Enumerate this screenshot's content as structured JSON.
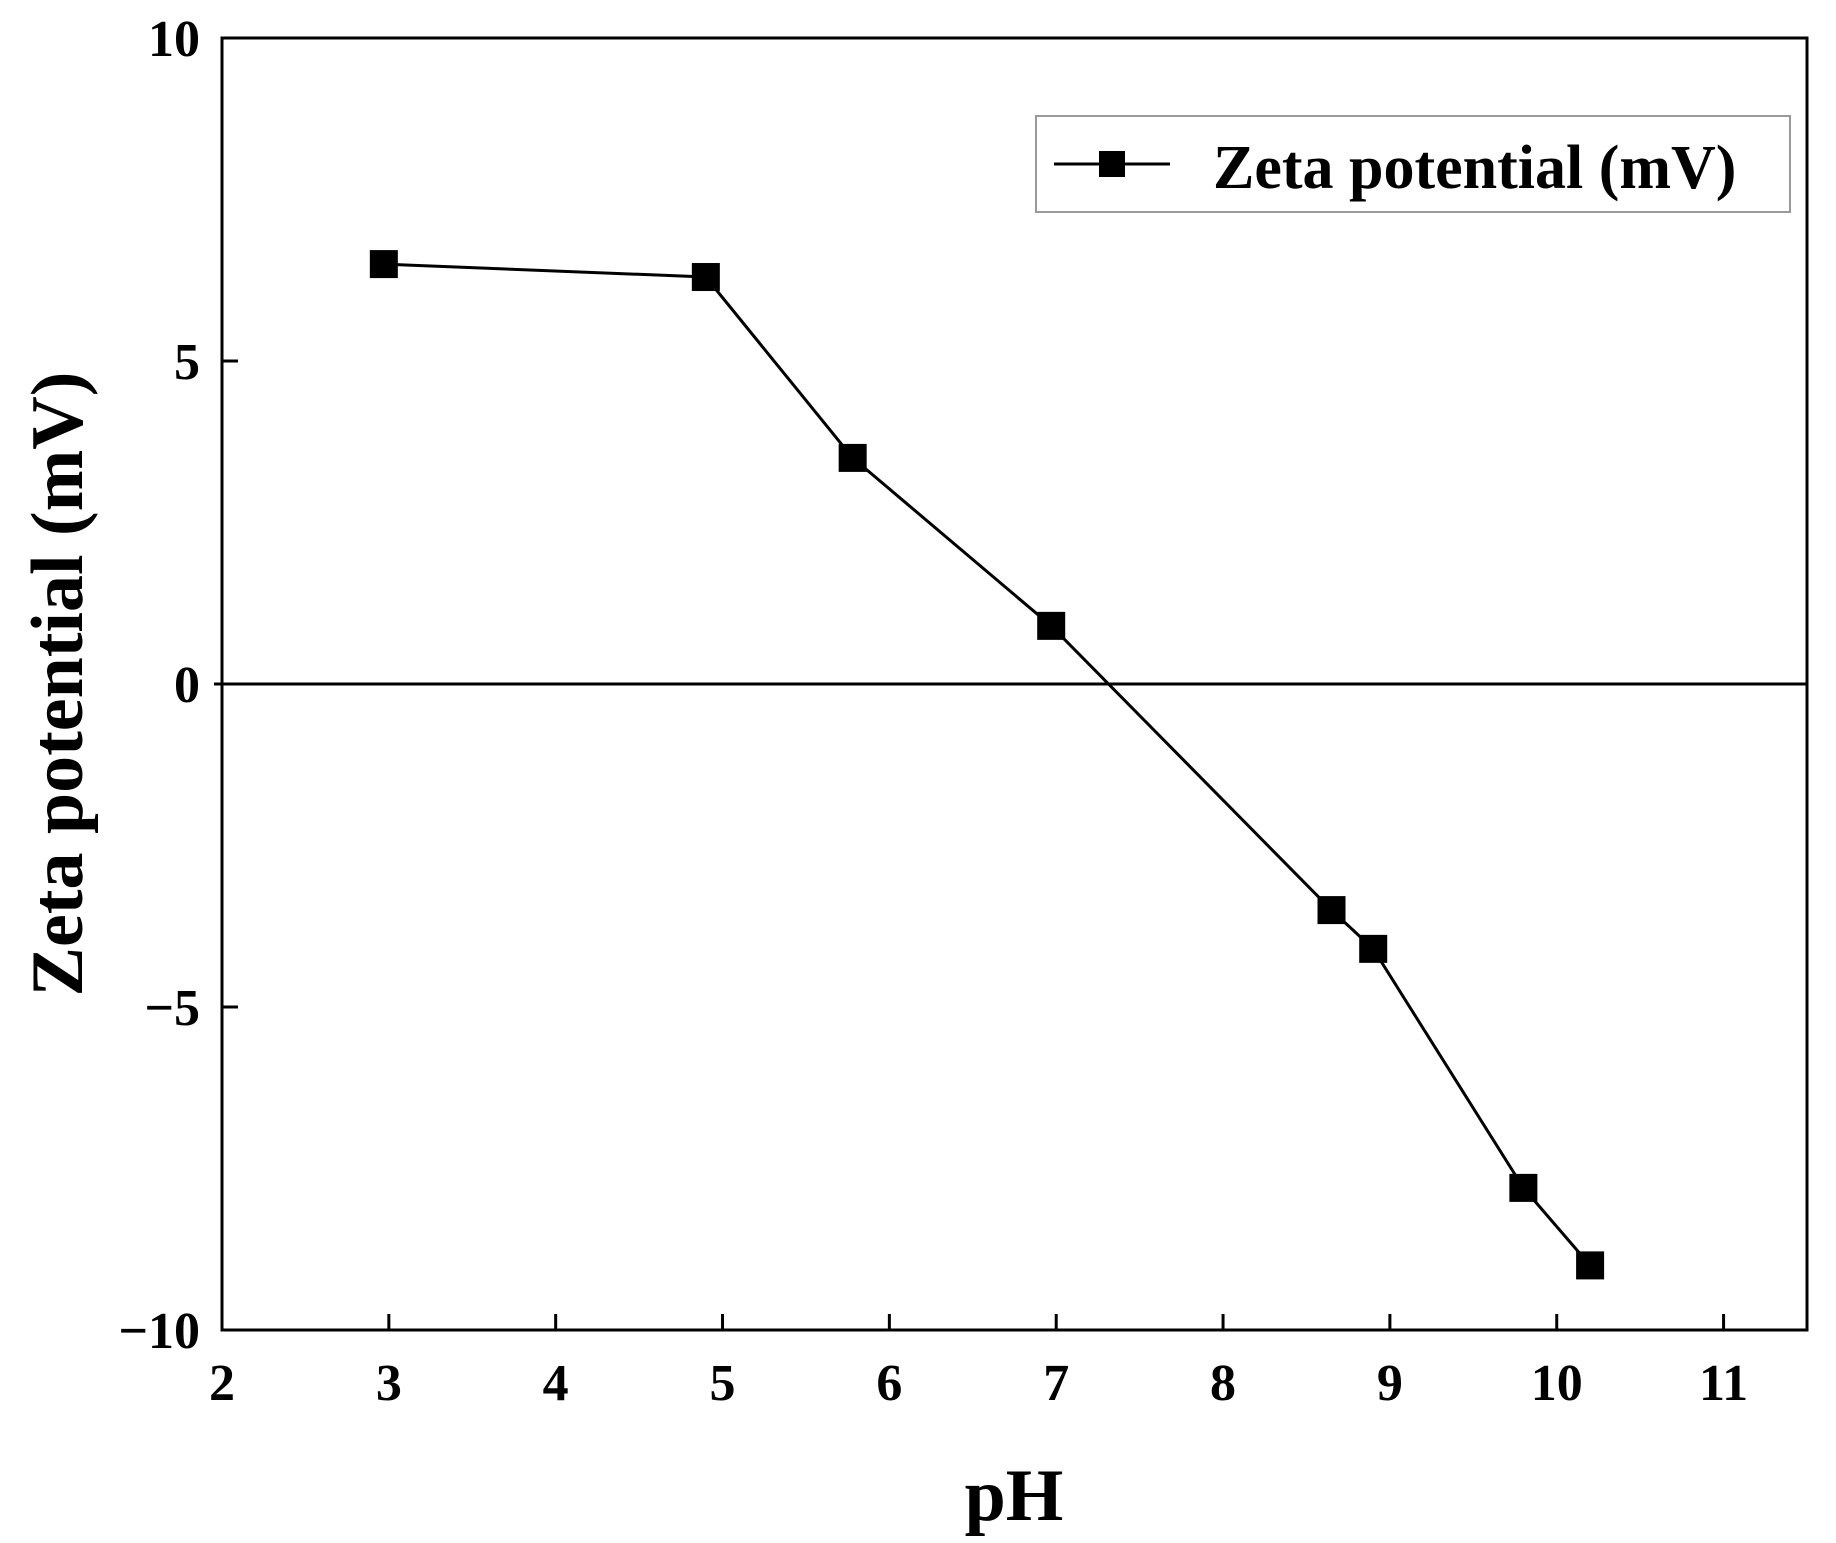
{
  "colors": {
    "line": "#000000",
    "marker": "#000000",
    "background": "#ffffff",
    "legend_border": "#9a9a9a"
  },
  "chart_data": {
    "type": "line",
    "title": "",
    "xlabel": "pH",
    "ylabel": "Zeta potential (mV)",
    "xlim": [
      2,
      11.5
    ],
    "ylim": [
      -10,
      10
    ],
    "xticks": [
      2,
      3,
      4,
      5,
      6,
      7,
      8,
      9,
      10,
      11
    ],
    "yticks": [
      -10,
      -5,
      0,
      5,
      10
    ],
    "xtick_labels": [
      "2",
      "3",
      "4",
      "5",
      "6",
      "7",
      "8",
      "9",
      "10",
      "11"
    ],
    "ytick_labels": [
      "−10",
      "−5",
      "0",
      "5",
      "10"
    ],
    "reference_line_y": 0,
    "grid": false,
    "legend_position": "top-right",
    "series": [
      {
        "name": "Zeta potential (mV)",
        "marker": "square",
        "x": [
          2.97,
          4.9,
          5.78,
          6.97,
          8.65,
          8.9,
          9.8,
          10.2
        ],
        "y": [
          6.5,
          6.3,
          3.5,
          0.9,
          -3.5,
          -4.1,
          -7.8,
          -9.0
        ]
      }
    ]
  }
}
